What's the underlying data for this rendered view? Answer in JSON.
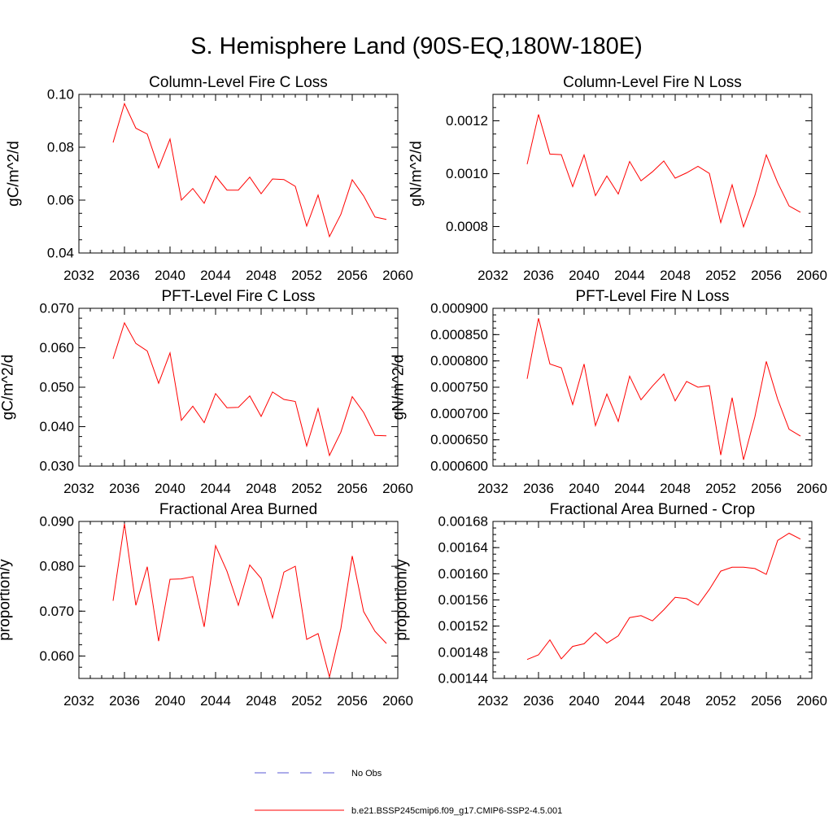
{
  "figure_title": "S. Hemisphere Land (90S-EQ,180W-180E)",
  "legend": {
    "entries": [
      {
        "label": "No Obs",
        "color": "#5a5ad6",
        "dash": true
      },
      {
        "label": "b.e21.BSSP245cmip6.f09_g17.CMIP6-SSP2-4.5.001",
        "color": "#ff0000",
        "dash": false
      }
    ]
  },
  "chart_data": [
    {
      "type": "line",
      "title": "Column-Level Fire C Loss",
      "ylabel": "gC/m^2/d",
      "xlim": [
        2032,
        2060
      ],
      "ylim": [
        0.04,
        0.1
      ],
      "xticks": [
        "2032",
        "2036",
        "2040",
        "2044",
        "2048",
        "2052",
        "2056",
        "2060"
      ],
      "yticks": [
        {
          "v": 0.04,
          "label": "0.04"
        },
        {
          "v": 0.06,
          "label": "0.06"
        },
        {
          "v": 0.08,
          "label": "0.08"
        },
        {
          "v": 0.1,
          "label": "0.10"
        }
      ],
      "yminor": 0.005,
      "color": "#ff0000",
      "x": [
        2035,
        2036,
        2037,
        2038,
        2039,
        2040,
        2041,
        2042,
        2043,
        2044,
        2045,
        2046,
        2047,
        2048,
        2049,
        2050,
        2051,
        2052,
        2053,
        2054,
        2055,
        2056,
        2057,
        2058,
        2059
      ],
      "y": [
        0.0818,
        0.0965,
        0.0872,
        0.085,
        0.0722,
        0.0831,
        0.06,
        0.0644,
        0.0588,
        0.0691,
        0.0638,
        0.0638,
        0.0687,
        0.0624,
        0.068,
        0.0678,
        0.0652,
        0.0502,
        0.0619,
        0.0462,
        0.0546,
        0.0677,
        0.0616,
        0.0536,
        0.0527
      ]
    },
    {
      "type": "line",
      "title": "Column-Level Fire N Loss",
      "ylabel": "gN/m^2/d",
      "xlim": [
        2032,
        2060
      ],
      "ylim": [
        0.0007,
        0.0013
      ],
      "xticks": [
        "2032",
        "2036",
        "2040",
        "2044",
        "2048",
        "2052",
        "2056",
        "2060"
      ],
      "yticks": [
        {
          "v": 0.0008,
          "label": "0.0008"
        },
        {
          "v": 0.001,
          "label": "0.0010"
        },
        {
          "v": 0.0012,
          "label": "0.0012"
        }
      ],
      "yminor": 5e-05,
      "color": "#ff0000",
      "x": [
        2035,
        2036,
        2037,
        2038,
        2039,
        2040,
        2041,
        2042,
        2043,
        2044,
        2045,
        2046,
        2047,
        2048,
        2049,
        2050,
        2051,
        2052,
        2053,
        2054,
        2055,
        2056,
        2057,
        2058,
        2059
      ],
      "y": [
        0.001036,
        0.001224,
        0.001074,
        0.001072,
        0.000951,
        0.001071,
        0.000917,
        0.000991,
        0.000923,
        0.001046,
        0.000973,
        0.001007,
        0.001048,
        0.000983,
        0.001003,
        0.001028,
        0.001001,
        0.000815,
        0.000958,
        0.000799,
        0.000918,
        0.001071,
        0.000966,
        0.000878,
        0.000854
      ]
    },
    {
      "type": "line",
      "title": "PFT-Level Fire C Loss",
      "ylabel": "gC/m^2/d",
      "xlim": [
        2032,
        2060
      ],
      "ylim": [
        0.03,
        0.07
      ],
      "xticks": [
        "2032",
        "2036",
        "2040",
        "2044",
        "2048",
        "2052",
        "2056",
        "2060"
      ],
      "yticks": [
        {
          "v": 0.03,
          "label": "0.030"
        },
        {
          "v": 0.04,
          "label": "0.040"
        },
        {
          "v": 0.05,
          "label": "0.050"
        },
        {
          "v": 0.06,
          "label": "0.060"
        },
        {
          "v": 0.07,
          "label": "0.070"
        }
      ],
      "yminor": 0.0025,
      "color": "#ff0000",
      "x": [
        2035,
        2036,
        2037,
        2038,
        2039,
        2040,
        2041,
        2042,
        2043,
        2044,
        2045,
        2046,
        2047,
        2048,
        2049,
        2050,
        2051,
        2052,
        2053,
        2054,
        2055,
        2056,
        2057,
        2058,
        2059
      ],
      "y": [
        0.0572,
        0.0663,
        0.0611,
        0.0592,
        0.051,
        0.0587,
        0.0416,
        0.0452,
        0.041,
        0.0484,
        0.0448,
        0.0449,
        0.0478,
        0.0426,
        0.0488,
        0.0469,
        0.0464,
        0.0351,
        0.0446,
        0.0327,
        0.0386,
        0.0476,
        0.0436,
        0.0378,
        0.0377
      ]
    },
    {
      "type": "line",
      "title": "PFT-Level Fire N Loss",
      "ylabel": "gN/m^2/d",
      "xlim": [
        2032,
        2060
      ],
      "ylim": [
        0.0006,
        0.0009
      ],
      "xticks": [
        "2032",
        "2036",
        "2040",
        "2044",
        "2048",
        "2052",
        "2056",
        "2060"
      ],
      "yticks": [
        {
          "v": 0.0006,
          "label": "0.000600"
        },
        {
          "v": 0.00065,
          "label": "0.000650"
        },
        {
          "v": 0.0007,
          "label": "0.000700"
        },
        {
          "v": 0.00075,
          "label": "0.000750"
        },
        {
          "v": 0.0008,
          "label": "0.000800"
        },
        {
          "v": 0.00085,
          "label": "0.000850"
        },
        {
          "v": 0.0009,
          "label": "0.000900"
        }
      ],
      "yminor": 1.25e-05,
      "color": "#ff0000",
      "x": [
        2035,
        2036,
        2037,
        2038,
        2039,
        2040,
        2041,
        2042,
        2043,
        2044,
        2045,
        2046,
        2047,
        2048,
        2049,
        2050,
        2051,
        2052,
        2053,
        2054,
        2055,
        2056,
        2057,
        2058,
        2059
      ],
      "y": [
        0.000766,
        0.000881,
        0.000794,
        0.000787,
        0.000717,
        0.000794,
        0.000677,
        0.000737,
        0.000685,
        0.000771,
        0.000726,
        0.000752,
        0.000775,
        0.000724,
        0.000761,
        0.00075,
        0.000753,
        0.000621,
        0.00073,
        0.000612,
        0.000694,
        0.000799,
        0.000727,
        0.00067,
        0.000657
      ]
    },
    {
      "type": "line",
      "title": "Fractional Area Burned",
      "ylabel": "proportion/y",
      "xlim": [
        2032,
        2060
      ],
      "ylim": [
        0.055,
        0.09
      ],
      "xticks": [
        "2032",
        "2036",
        "2040",
        "2044",
        "2048",
        "2052",
        "2056",
        "2060"
      ],
      "yticks": [
        {
          "v": 0.06,
          "label": "0.060"
        },
        {
          "v": 0.07,
          "label": "0.070"
        },
        {
          "v": 0.08,
          "label": "0.080"
        },
        {
          "v": 0.09,
          "label": "0.090"
        }
      ],
      "yminor": 0.0025,
      "color": "#ff0000",
      "x": [
        2035,
        2036,
        2037,
        2038,
        2039,
        2040,
        2041,
        2042,
        2043,
        2044,
        2045,
        2046,
        2047,
        2048,
        2049,
        2050,
        2051,
        2052,
        2053,
        2054,
        2055,
        2056,
        2057,
        2058,
        2059
      ],
      "y": [
        0.0723,
        0.0895,
        0.0713,
        0.0799,
        0.0633,
        0.0771,
        0.0772,
        0.0777,
        0.0665,
        0.0846,
        0.0789,
        0.0713,
        0.0803,
        0.0773,
        0.0685,
        0.0787,
        0.08,
        0.0637,
        0.065,
        0.0553,
        0.0661,
        0.0823,
        0.0699,
        0.0655,
        0.0628
      ]
    },
    {
      "type": "line",
      "title": "Fractional Area Burned - Crop",
      "ylabel": "proportion/y",
      "xlim": [
        2032,
        2060
      ],
      "ylim": [
        0.00144,
        0.00168
      ],
      "xticks": [
        "2032",
        "2036",
        "2040",
        "2044",
        "2048",
        "2052",
        "2056",
        "2060"
      ],
      "yticks": [
        {
          "v": 0.00144,
          "label": "0.00144"
        },
        {
          "v": 0.00148,
          "label": "0.00148"
        },
        {
          "v": 0.00152,
          "label": "0.00152"
        },
        {
          "v": 0.00156,
          "label": "0.00156"
        },
        {
          "v": 0.0016,
          "label": "0.00160"
        },
        {
          "v": 0.00164,
          "label": "0.00164"
        },
        {
          "v": 0.00168,
          "label": "0.00168"
        }
      ],
      "yminor": 1e-05,
      "color": "#ff0000",
      "x": [
        2035,
        2036,
        2037,
        2038,
        2039,
        2040,
        2041,
        2042,
        2043,
        2044,
        2045,
        2046,
        2047,
        2048,
        2049,
        2050,
        2051,
        2052,
        2053,
        2054,
        2055,
        2056,
        2057,
        2058,
        2059
      ],
      "y": [
        0.001469,
        0.001476,
        0.001499,
        0.00147,
        0.001489,
        0.001493,
        0.00151,
        0.001494,
        0.001505,
        0.001533,
        0.001536,
        0.001528,
        0.001545,
        0.001564,
        0.001562,
        0.001552,
        0.001576,
        0.001604,
        0.00161,
        0.00161,
        0.001608,
        0.001599,
        0.001651,
        0.001662,
        0.001653
      ]
    }
  ]
}
